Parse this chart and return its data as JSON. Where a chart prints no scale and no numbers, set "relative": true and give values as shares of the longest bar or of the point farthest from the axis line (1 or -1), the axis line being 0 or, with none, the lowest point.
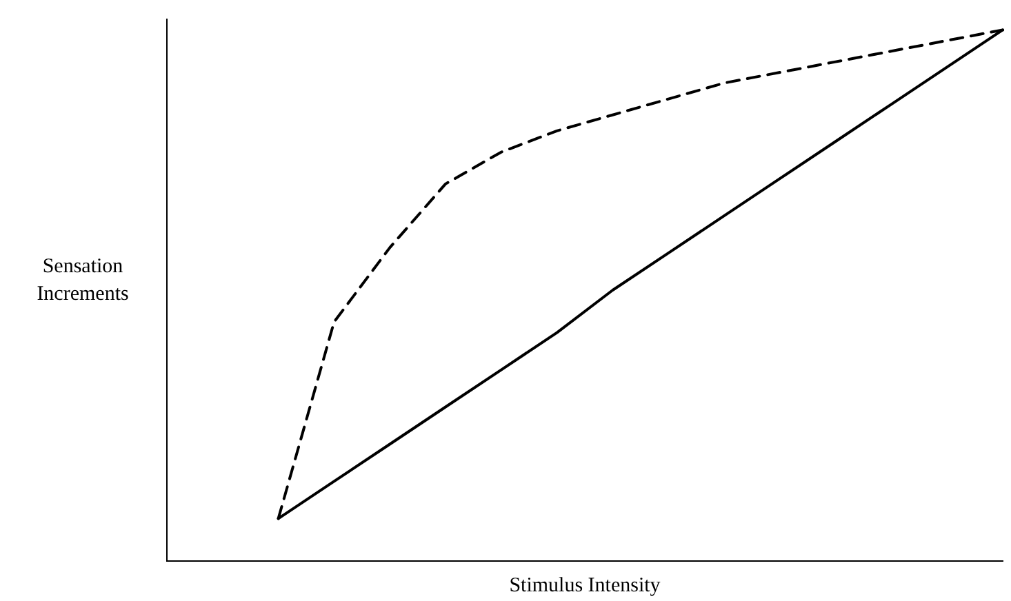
{
  "chart_data": {
    "type": "line",
    "relative": true,
    "xlabel": "Stimulus Intensity",
    "ylabel": "Sensation Increments",
    "categories": [
      null,
      null,
      null,
      null,
      null,
      null,
      null,
      null,
      null,
      null,
      null,
      null,
      null,
      null,
      null,
      null
    ],
    "grid": false,
    "legend": false,
    "marker": "none",
    "series": [
      {
        "color": "#000000",
        "line_style": "dashed",
        "values": [
          null,
          null,
          0.08,
          0.45,
          0.59,
          0.71,
          0.77,
          0.81,
          0.84,
          0.87,
          0.9,
          0.92,
          0.94,
          0.96,
          0.98,
          1.0
        ]
      },
      {
        "color": "#000000",
        "line_style": "solid",
        "values": [
          null,
          null,
          0.08,
          0.15,
          0.22,
          0.29,
          0.36,
          0.43,
          0.51,
          0.58,
          0.65,
          0.72,
          0.79,
          0.86,
          0.93,
          1.0
        ]
      }
    ]
  }
}
